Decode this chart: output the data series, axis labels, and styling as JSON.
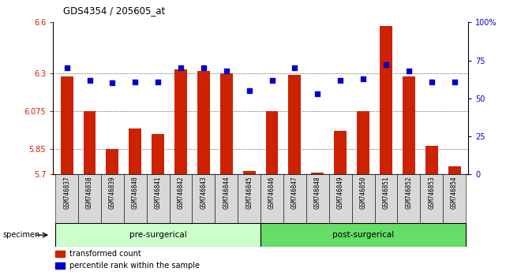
{
  "title": "GDS4354 / 205605_at",
  "samples": [
    "GSM746837",
    "GSM746838",
    "GSM746839",
    "GSM746840",
    "GSM746841",
    "GSM746842",
    "GSM746843",
    "GSM746844",
    "GSM746845",
    "GSM746846",
    "GSM746847",
    "GSM746848",
    "GSM746849",
    "GSM746850",
    "GSM746851",
    "GSM746852",
    "GSM746853",
    "GSM746854"
  ],
  "bar_values": [
    6.28,
    6.075,
    5.85,
    5.97,
    5.94,
    6.32,
    6.31,
    6.3,
    5.72,
    6.075,
    6.29,
    5.71,
    5.96,
    6.075,
    6.58,
    6.28,
    5.87,
    5.75
  ],
  "percentile_values": [
    70,
    62,
    60,
    61,
    61,
    70,
    70,
    68,
    55,
    62,
    70,
    53,
    62,
    63,
    72,
    68,
    61,
    61
  ],
  "ylim_left": [
    5.7,
    6.6
  ],
  "ylim_right": [
    0,
    100
  ],
  "yticks_left": [
    5.7,
    5.85,
    6.075,
    6.3,
    6.6
  ],
  "yticks_right": [
    0,
    25,
    50,
    75,
    100
  ],
  "ytick_labels_left": [
    "5.7",
    "5.85",
    "6.075",
    "6.3",
    "6.6"
  ],
  "ytick_labels_right": [
    "0",
    "25",
    "50",
    "75",
    "100%"
  ],
  "bar_color": "#cc2200",
  "dot_color": "#0000cc",
  "pre_surgical_indices": [
    0,
    1,
    2,
    3,
    4,
    5,
    6,
    7,
    8
  ],
  "post_surgical_indices": [
    9,
    10,
    11,
    12,
    13,
    14,
    15,
    16,
    17
  ],
  "pre_surgical_label": "pre-surgerical",
  "post_surgical_label": "post-surgerical",
  "specimen_label": "specimen",
  "legend_bar_label": "transformed count",
  "legend_dot_label": "percentile rank within the sample",
  "bg_color": "#ffffff",
  "pre_color": "#ccffcc",
  "post_color": "#66dd66",
  "xlabel_bg_color": "#d0d0d0"
}
